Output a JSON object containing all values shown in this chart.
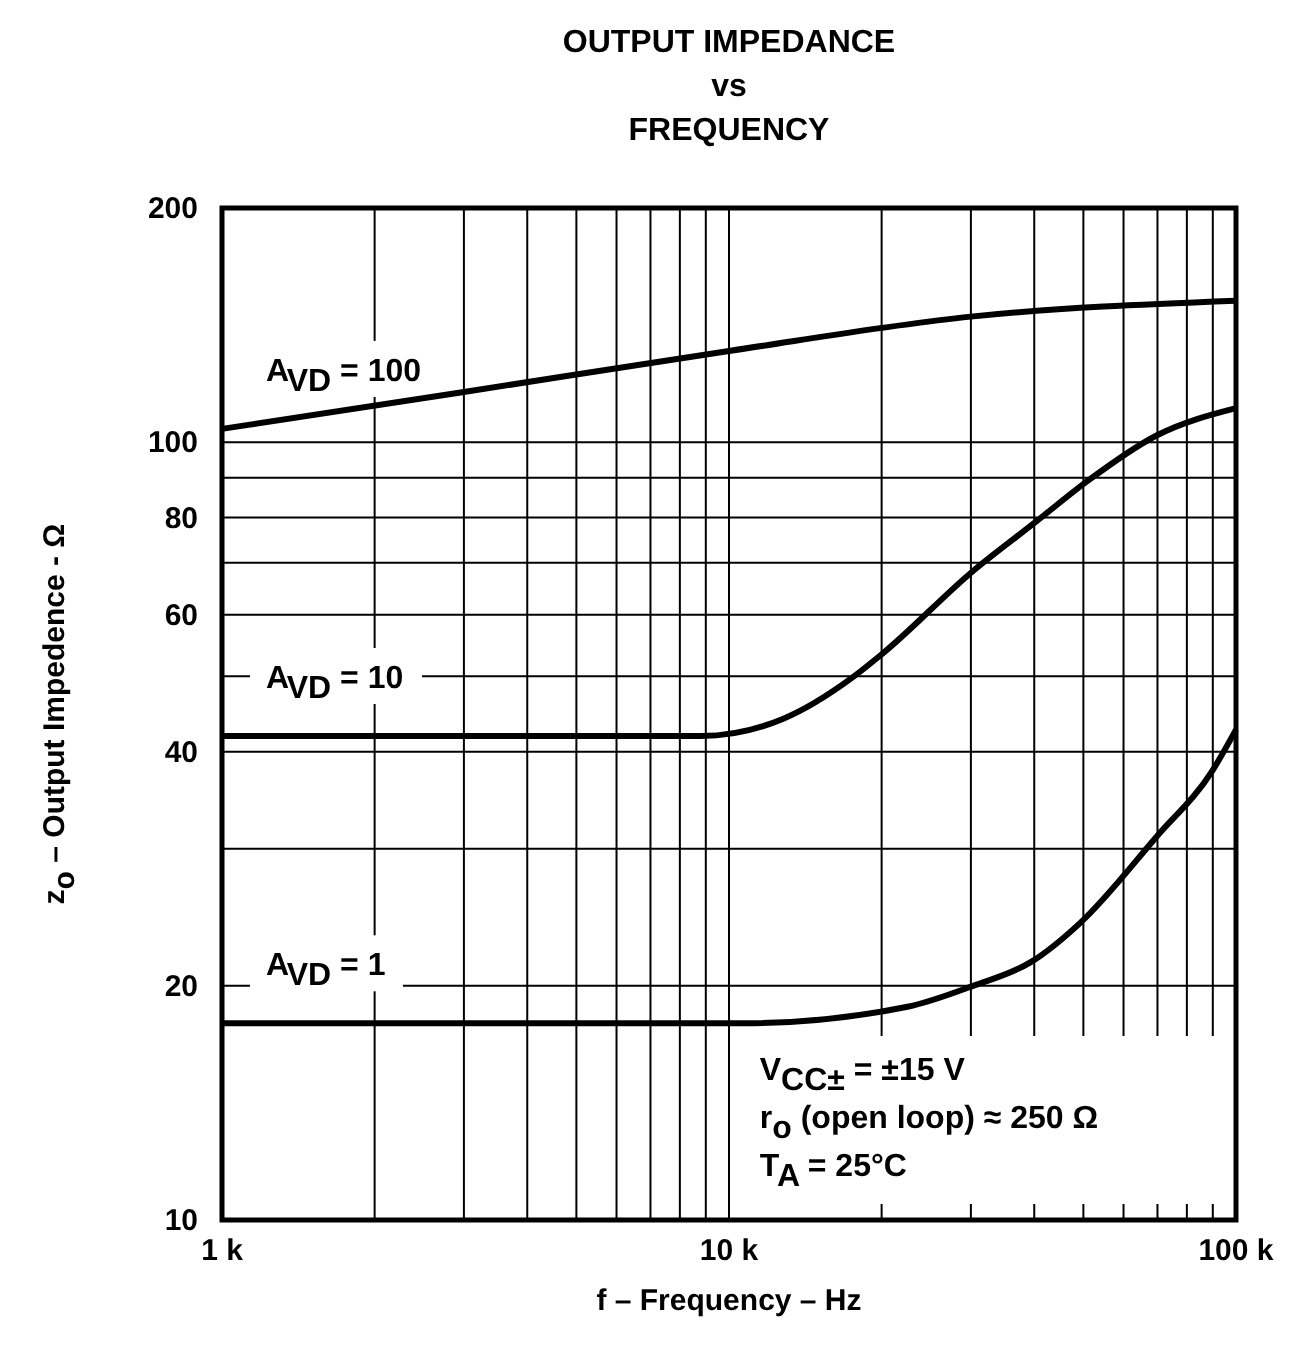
{
  "chart_data": {
    "type": "line",
    "title": "OUTPUT IMPEDANCE\nvs\nFREQUENCY",
    "xlabel": "f – Frequency – Hz",
    "ylabel": "z$_{o}$ – Output Impedence - Ω",
    "log": "xy",
    "grid": true,
    "line_style": "solid",
    "xlim": [
      1000,
      100000
    ],
    "ylim": [
      10,
      200
    ],
    "xticks": [
      {
        "value": 1000,
        "label": "1 k"
      },
      {
        "value": 2000,
        "label": null
      },
      {
        "value": 3000,
        "label": null
      },
      {
        "value": 4000,
        "label": null
      },
      {
        "value": 5000,
        "label": null
      },
      {
        "value": 6000,
        "label": null
      },
      {
        "value": 7000,
        "label": null
      },
      {
        "value": 8000,
        "label": null
      },
      {
        "value": 9000,
        "label": null
      },
      {
        "value": 10000,
        "label": "10 k"
      },
      {
        "value": 20000,
        "label": null
      },
      {
        "value": 30000,
        "label": null
      },
      {
        "value": 40000,
        "label": null
      },
      {
        "value": 50000,
        "label": null
      },
      {
        "value": 60000,
        "label": null
      },
      {
        "value": 70000,
        "label": null
      },
      {
        "value": 80000,
        "label": null
      },
      {
        "value": 90000,
        "label": null
      },
      {
        "value": 100000,
        "label": "100 k"
      }
    ],
    "yticks": [
      10,
      20,
      {
        "value": 30,
        "label": null
      },
      40,
      {
        "value": 50,
        "label": null
      },
      60,
      {
        "value": 70,
        "label": null
      },
      80,
      {
        "value": 90,
        "label": null
      },
      100,
      200
    ],
    "series": [
      {
        "name": "A$_{VD}$ = 100",
        "color": "#000000",
        "x": [
          1000,
          3000,
          10000,
          30000,
          100000
        ],
        "values": [
          104,
          116,
          131,
          145,
          152
        ]
      },
      {
        "name": "A$_{VD}$ = 10",
        "color": "#000000",
        "x": [
          1000,
          8800,
          12800,
          17500,
          20100,
          30300,
          40200,
          50900,
          69700,
          100000
        ],
        "values": [
          41.9,
          41.9,
          44.1,
          49.8,
          53.5,
          68.3,
          78.9,
          89.1,
          102,
          110.6
        ]
      },
      {
        "name": "A$_{VD}$ = 1",
        "color": "#000000",
        "x": [
          1000,
          10700,
          22500,
          30300,
          39600,
          49300,
          69700,
          89800,
          100000
        ],
        "values": [
          17.9,
          17.9,
          18.8,
          20,
          21.5,
          24.1,
          31.1,
          37.8,
          42.7
        ]
      }
    ],
    "annotations": [
      "V$_{CC±}$ = ±15 V",
      "r$_{o}$ (open loop) ≈ 250 Ω",
      "T$_{A}$ = 25°C"
    ]
  }
}
